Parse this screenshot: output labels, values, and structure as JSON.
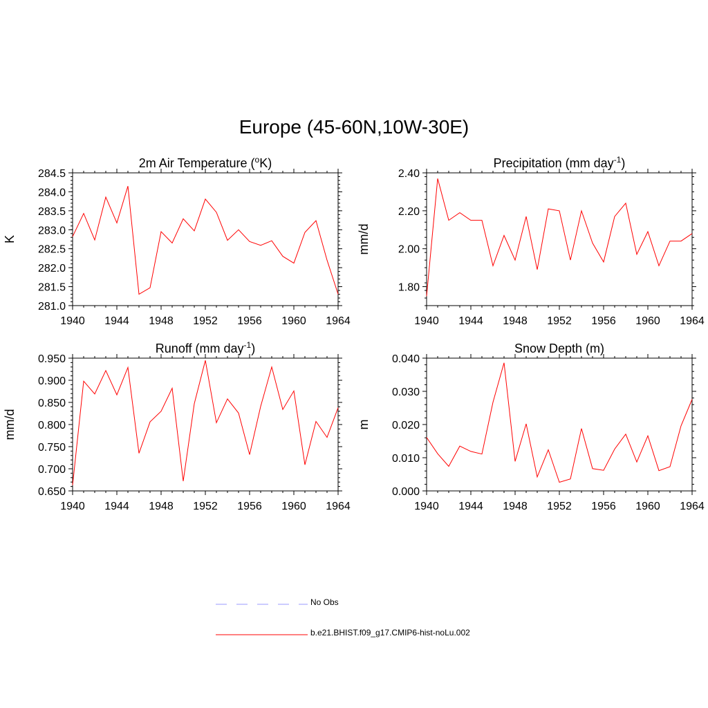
{
  "title": "Europe (45-60N,10W-30E)",
  "line_color": "#ff0000",
  "legend": {
    "items": [
      {
        "label": "No Obs",
        "color": "#9999ff",
        "style": "dashed"
      },
      {
        "label": "b.e21.BHIST.f09_g17.CMIP6-hist-noLu.002",
        "color": "#ff0000",
        "style": "solid"
      }
    ]
  },
  "chart_data": [
    {
      "type": "line",
      "title": "2m Air Temperature (",
      "title_sup": "o",
      "title_suffix": "K)",
      "ylabel": "K",
      "xlim": [
        1940,
        1964
      ],
      "ylim": [
        281.0,
        284.5
      ],
      "xticks": [
        "1940",
        "1944",
        "1948",
        "1952",
        "1956",
        "1960",
        "1964"
      ],
      "yticks": [
        "281.0",
        "281.5",
        "282.0",
        "282.5",
        "283.0",
        "283.5",
        "284.0",
        "284.5"
      ],
      "grid": false,
      "x": [
        1940,
        1941,
        1942,
        1943,
        1944,
        1945,
        1946,
        1947,
        1948,
        1949,
        1950,
        1951,
        1952,
        1953,
        1954,
        1955,
        1956,
        1957,
        1958,
        1959,
        1960,
        1961,
        1962,
        1963,
        1964
      ],
      "series": [
        {
          "name": "b.e21.BHIST.f09_g17.CMIP6-hist-noLu.002",
          "values": [
            282.82,
            283.43,
            282.73,
            283.86,
            283.18,
            284.15,
            281.3,
            281.47,
            282.95,
            282.65,
            283.29,
            282.97,
            283.81,
            283.46,
            282.72,
            283.0,
            282.69,
            282.59,
            282.71,
            282.3,
            282.12,
            282.93,
            283.24,
            282.2,
            281.3
          ]
        }
      ]
    },
    {
      "type": "line",
      "title": "Precipitation (mm day",
      "title_sup": "-1",
      "title_suffix": ")",
      "ylabel": "mm/d",
      "xlim": [
        1940,
        1964
      ],
      "ylim": [
        1.7,
        2.4
      ],
      "xticks": [
        "1940",
        "1944",
        "1948",
        "1952",
        "1956",
        "1960",
        "1964"
      ],
      "yticks": [
        "1.80",
        "2.00",
        "2.20",
        "2.40"
      ],
      "grid": false,
      "x": [
        1940,
        1941,
        1942,
        1943,
        1944,
        1945,
        1946,
        1947,
        1948,
        1949,
        1950,
        1951,
        1952,
        1953,
        1954,
        1955,
        1956,
        1957,
        1958,
        1959,
        1960,
        1961,
        1962,
        1963,
        1964
      ],
      "series": [
        {
          "name": "b.e21.BHIST.f09_g17.CMIP6-hist-noLu.002",
          "values": [
            1.75,
            2.37,
            2.15,
            2.19,
            2.15,
            2.15,
            1.91,
            2.07,
            1.94,
            2.17,
            1.89,
            2.21,
            2.2,
            1.94,
            2.2,
            2.03,
            1.93,
            2.17,
            2.24,
            1.97,
            2.09,
            1.91,
            2.04,
            2.04,
            2.08
          ]
        }
      ]
    },
    {
      "type": "line",
      "title": "Runoff (mm day",
      "title_sup": "-1",
      "title_suffix": ")",
      "ylabel": "mm/d",
      "xlim": [
        1940,
        1964
      ],
      "ylim": [
        0.65,
        0.95
      ],
      "xticks": [
        "1940",
        "1944",
        "1948",
        "1952",
        "1956",
        "1960",
        "1964"
      ],
      "yticks": [
        "0.650",
        "0.700",
        "0.750",
        "0.800",
        "0.850",
        "0.900",
        "0.950"
      ],
      "grid": false,
      "x": [
        1940,
        1941,
        1942,
        1943,
        1944,
        1945,
        1946,
        1947,
        1948,
        1949,
        1950,
        1951,
        1952,
        1953,
        1954,
        1955,
        1956,
        1957,
        1958,
        1959,
        1960,
        1961,
        1962,
        1963,
        1964
      ],
      "series": [
        {
          "name": "b.e21.BHIST.f09_g17.CMIP6-hist-noLu.002",
          "values": [
            0.663,
            0.898,
            0.869,
            0.922,
            0.867,
            0.929,
            0.735,
            0.806,
            0.83,
            0.882,
            0.672,
            0.847,
            0.945,
            0.804,
            0.858,
            0.826,
            0.732,
            0.841,
            0.93,
            0.834,
            0.876,
            0.709,
            0.807,
            0.771,
            0.838
          ]
        }
      ]
    },
    {
      "type": "line",
      "title": "Snow Depth (m)",
      "title_sup": "",
      "title_suffix": "",
      "ylabel": "m",
      "xlim": [
        1940,
        1964
      ],
      "ylim": [
        0.0,
        0.04
      ],
      "xticks": [
        "1940",
        "1944",
        "1948",
        "1952",
        "1956",
        "1960",
        "1964"
      ],
      "yticks": [
        "0.000",
        "0.010",
        "0.020",
        "0.030",
        "0.040"
      ],
      "grid": false,
      "x": [
        1940,
        1941,
        1942,
        1943,
        1944,
        1945,
        1946,
        1947,
        1948,
        1949,
        1950,
        1951,
        1952,
        1953,
        1954,
        1955,
        1956,
        1957,
        1958,
        1959,
        1960,
        1961,
        1962,
        1963,
        1964
      ],
      "series": [
        {
          "name": "b.e21.BHIST.f09_g17.CMIP6-hist-noLu.002",
          "values": [
            0.0161,
            0.0112,
            0.0074,
            0.0135,
            0.0119,
            0.0111,
            0.0267,
            0.0386,
            0.0089,
            0.0202,
            0.0042,
            0.0124,
            0.0026,
            0.0036,
            0.0188,
            0.0067,
            0.0062,
            0.0126,
            0.0171,
            0.0087,
            0.0166,
            0.0061,
            0.0073,
            0.0196,
            0.0276
          ]
        }
      ]
    }
  ]
}
